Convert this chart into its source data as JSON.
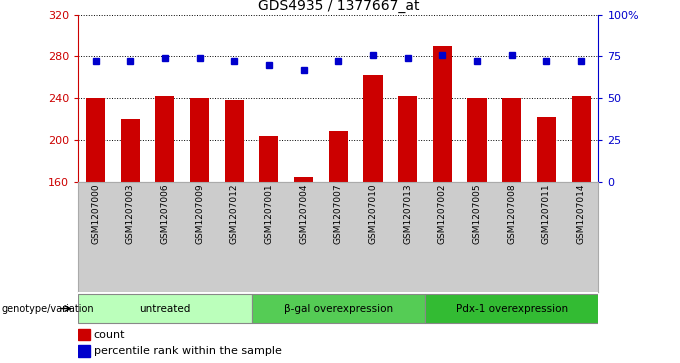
{
  "title": "GDS4935 / 1377667_at",
  "samples": [
    "GSM1207000",
    "GSM1207003",
    "GSM1207006",
    "GSM1207009",
    "GSM1207012",
    "GSM1207001",
    "GSM1207004",
    "GSM1207007",
    "GSM1207010",
    "GSM1207013",
    "GSM1207002",
    "GSM1207005",
    "GSM1207008",
    "GSM1207011",
    "GSM1207014"
  ],
  "counts": [
    240,
    220,
    242,
    240,
    238,
    204,
    164,
    208,
    262,
    242,
    290,
    240,
    240,
    222,
    242
  ],
  "percentiles": [
    72,
    72,
    74,
    74,
    72,
    70,
    67,
    72,
    76,
    74,
    76,
    72,
    76,
    72,
    72
  ],
  "groups": [
    {
      "label": "untreated",
      "start": 0,
      "end": 5,
      "color": "#bbffbb"
    },
    {
      "label": "β-gal overexpression",
      "start": 5,
      "end": 10,
      "color": "#55cc55"
    },
    {
      "label": "Pdx-1 overexpression",
      "start": 10,
      "end": 15,
      "color": "#33bb33"
    }
  ],
  "ylim_left": [
    160,
    320
  ],
  "yticks_left": [
    160,
    200,
    240,
    280,
    320
  ],
  "ylim_right": [
    0,
    100
  ],
  "yticks_right": [
    0,
    25,
    50,
    75,
    100
  ],
  "bar_color": "#cc0000",
  "dot_color": "#0000cc",
  "bar_width": 0.55,
  "bg_color": "#ffffff",
  "plot_bg": "#ffffff",
  "title_color": "#000000",
  "left_tick_color": "#cc0000",
  "right_tick_color": "#0000cc",
  "grid_color": "#000000",
  "group_label_left": "genotype/variation",
  "gray_color": "#cccccc"
}
